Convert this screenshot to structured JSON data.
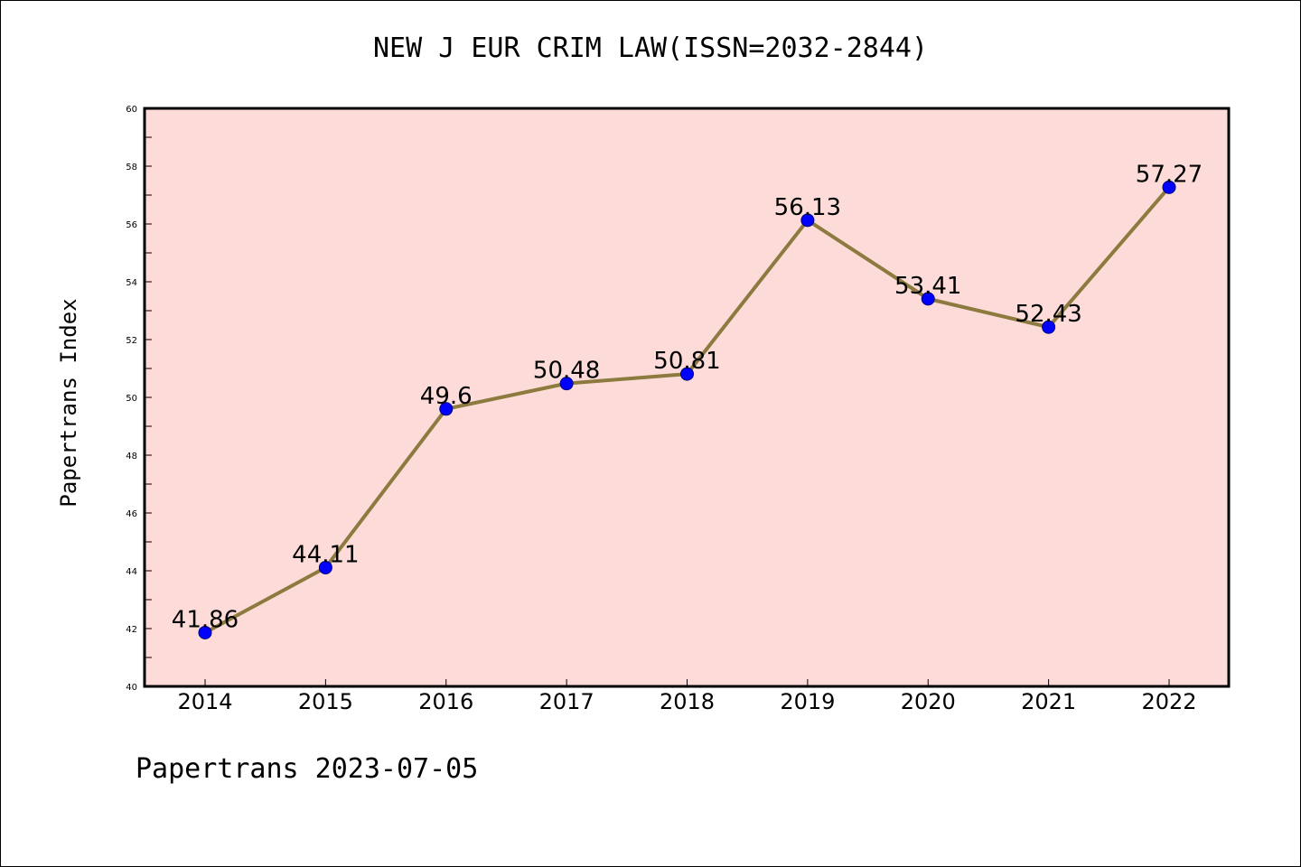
{
  "title": "NEW J EUR CRIM LAW(ISSN=2032-2844)",
  "footer": "Papertrans 2023-07-05",
  "colors": {
    "plot_background": "#fddbd8",
    "line": "#8c7a3e",
    "marker": "#0000ff",
    "axis": "#000000"
  },
  "chart_data": {
    "type": "line",
    "title": "NEW J EUR CRIM LAW(ISSN=2032-2844)",
    "xlabel": "",
    "ylabel": "Papertrans Index",
    "categories": [
      "2014",
      "2015",
      "2016",
      "2017",
      "2018",
      "2019",
      "2020",
      "2021",
      "2022"
    ],
    "series": [
      {
        "values": [
          41.86,
          44.11,
          49.6,
          50.48,
          50.81,
          56.13,
          53.41,
          52.43,
          57.27
        ],
        "labels": [
          "41.86",
          "44.11",
          "49.6",
          "50.48",
          "50.81",
          "56.13",
          "53.41",
          "52.43",
          "57.27"
        ]
      }
    ],
    "ylim": [
      40,
      60
    ],
    "yticks": [
      40,
      42,
      44,
      46,
      48,
      50,
      52,
      54,
      56,
      58,
      60
    ],
    "grid": false,
    "legend": "none"
  }
}
